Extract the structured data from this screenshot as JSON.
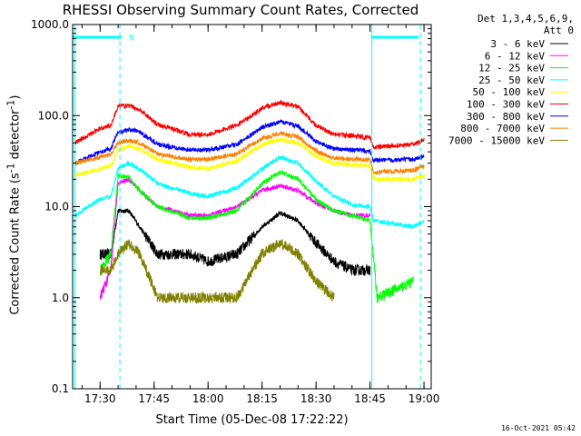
{
  "chart_data": {
    "type": "line",
    "title": "RHESSI Observing Summary Count Rates, Corrected",
    "xlabel": "Start Time (05-Dec-08 17:22:22)",
    "ylabel": "Corrected Count Rate (s⁻¹ detector⁻¹)",
    "ylabel_parts": {
      "pre": "Corrected Count Rate (s",
      "sup1": "-1",
      "mid": " detector",
      "sup2": "-1",
      "post": ")"
    },
    "yscale": "log",
    "ylim": [
      0.1,
      1000
    ],
    "xlim": [
      "17:22:22",
      "19:02:00"
    ],
    "x_ticks": [
      "17:30",
      "17:45",
      "18:00",
      "18:15",
      "18:30",
      "18:45",
      "19:00"
    ],
    "y_ticks": [
      "0.1",
      "1.0",
      "10.0",
      "100.0",
      "1000.0"
    ],
    "legend_header": [
      "Det 1,3,4,5,6,9,",
      "Att 0"
    ],
    "legend_placement": "right",
    "timestamp": "16-Oct-2021 05:42",
    "flag_label": "N",
    "series": [
      {
        "name": "3 - 6 keV",
        "color": "#000000",
        "points": [
          [
            "17:30",
            3
          ],
          [
            "17:33",
            3
          ],
          [
            "17:35",
            9
          ],
          [
            "17:38",
            9
          ],
          [
            "17:41",
            6
          ],
          [
            "17:46",
            3
          ],
          [
            "17:55",
            3
          ],
          [
            "18:00",
            2.5
          ],
          [
            "18:08",
            3
          ],
          [
            "18:15",
            6
          ],
          [
            "18:20",
            8.5
          ],
          [
            "18:25",
            7
          ],
          [
            "18:30",
            4
          ],
          [
            "18:35",
            2.5
          ],
          [
            "18:40",
            2
          ],
          [
            "18:45",
            2
          ]
        ]
      },
      {
        "name": "6 - 12 keV",
        "color": "#ff00ff",
        "points": [
          [
            "17:30",
            1
          ],
          [
            "17:33",
            2
          ],
          [
            "17:35",
            18
          ],
          [
            "17:38",
            20
          ],
          [
            "17:41",
            15
          ],
          [
            "17:46",
            10
          ],
          [
            "17:55",
            8
          ],
          [
            "18:00",
            8
          ],
          [
            "18:08",
            10
          ],
          [
            "18:15",
            15
          ],
          [
            "18:20",
            17
          ],
          [
            "18:25",
            15
          ],
          [
            "18:30",
            11
          ],
          [
            "18:35",
            9
          ],
          [
            "18:40",
            8
          ],
          [
            "18:45",
            8
          ]
        ]
      },
      {
        "name": "12 - 25 keV",
        "color": "#00ff00",
        "points": [
          [
            "17:30",
            2
          ],
          [
            "17:33",
            3
          ],
          [
            "17:35",
            22
          ],
          [
            "17:38",
            21
          ],
          [
            "17:41",
            15
          ],
          [
            "17:46",
            10
          ],
          [
            "17:55",
            7.5
          ],
          [
            "18:00",
            7.5
          ],
          [
            "18:08",
            9
          ],
          [
            "18:15",
            18
          ],
          [
            "18:20",
            24
          ],
          [
            "18:25",
            20
          ],
          [
            "18:30",
            12
          ],
          [
            "18:35",
            9
          ],
          [
            "18:40",
            8
          ],
          [
            "18:45",
            7
          ],
          [
            "18:47",
            1
          ],
          [
            "18:57",
            1.5
          ]
        ]
      },
      {
        "name": "25 - 50 keV",
        "color": "#00ffff",
        "points": [
          [
            "17:23",
            8
          ],
          [
            "17:30",
            12
          ],
          [
            "17:33",
            13
          ],
          [
            "17:35",
            26
          ],
          [
            "17:38",
            30
          ],
          [
            "17:41",
            26
          ],
          [
            "17:46",
            18
          ],
          [
            "17:55",
            14
          ],
          [
            "18:00",
            13
          ],
          [
            "18:08",
            16
          ],
          [
            "18:15",
            26
          ],
          [
            "18:20",
            35
          ],
          [
            "18:25",
            30
          ],
          [
            "18:30",
            19
          ],
          [
            "18:35",
            13
          ],
          [
            "18:40",
            10.5
          ],
          [
            "18:45",
            10
          ],
          [
            "18:46",
            7
          ],
          [
            "18:57",
            6
          ],
          [
            "19:00",
            7
          ]
        ]
      },
      {
        "name": "50 - 100 keV",
        "color": "#ffff00",
        "points": [
          [
            "17:23",
            22
          ],
          [
            "17:30",
            26
          ],
          [
            "17:33",
            28
          ],
          [
            "17:35",
            42
          ],
          [
            "17:38",
            46
          ],
          [
            "17:41",
            43
          ],
          [
            "17:46",
            33
          ],
          [
            "17:55",
            27
          ],
          [
            "18:00",
            26
          ],
          [
            "18:08",
            32
          ],
          [
            "18:15",
            48
          ],
          [
            "18:20",
            55
          ],
          [
            "18:25",
            50
          ],
          [
            "18:30",
            36
          ],
          [
            "18:35",
            30
          ],
          [
            "18:40",
            29
          ],
          [
            "18:45",
            28
          ],
          [
            "18:46",
            20
          ],
          [
            "18:57",
            20
          ],
          [
            "19:00",
            22
          ]
        ]
      },
      {
        "name": "100 - 300 keV",
        "color": "#ff0000",
        "points": [
          [
            "17:23",
            50
          ],
          [
            "17:30",
            72
          ],
          [
            "17:33",
            78
          ],
          [
            "17:35",
            128
          ],
          [
            "17:38",
            128
          ],
          [
            "17:41",
            116
          ],
          [
            "17:46",
            80
          ],
          [
            "17:55",
            62
          ],
          [
            "18:00",
            62
          ],
          [
            "18:08",
            78
          ],
          [
            "18:15",
            120
          ],
          [
            "18:20",
            140
          ],
          [
            "18:25",
            125
          ],
          [
            "18:30",
            78
          ],
          [
            "18:35",
            62
          ],
          [
            "18:40",
            60
          ],
          [
            "18:45",
            57
          ],
          [
            "18:46",
            45
          ],
          [
            "18:57",
            48
          ],
          [
            "19:00",
            54
          ]
        ]
      },
      {
        "name": "300 - 800 keV",
        "color": "#0000ff",
        "points": [
          [
            "17:23",
            30
          ],
          [
            "17:30",
            40
          ],
          [
            "17:33",
            43
          ],
          [
            "17:35",
            66
          ],
          [
            "17:38",
            70
          ],
          [
            "17:41",
            67
          ],
          [
            "17:46",
            48
          ],
          [
            "17:55",
            42
          ],
          [
            "18:00",
            42
          ],
          [
            "18:08",
            48
          ],
          [
            "18:15",
            74
          ],
          [
            "18:20",
            86
          ],
          [
            "18:25",
            77
          ],
          [
            "18:30",
            52
          ],
          [
            "18:35",
            43
          ],
          [
            "18:40",
            42
          ],
          [
            "18:45",
            41
          ],
          [
            "18:46",
            32
          ],
          [
            "18:57",
            33
          ],
          [
            "19:00",
            36
          ]
        ]
      },
      {
        "name": "800 - 7000 keV",
        "color": "#ff8000",
        "points": [
          [
            "17:23",
            30
          ],
          [
            "17:30",
            35
          ],
          [
            "17:33",
            38
          ],
          [
            "17:35",
            50
          ],
          [
            "17:38",
            53
          ],
          [
            "17:41",
            50
          ],
          [
            "17:46",
            38
          ],
          [
            "17:55",
            33
          ],
          [
            "18:00",
            33
          ],
          [
            "18:08",
            38
          ],
          [
            "18:15",
            56
          ],
          [
            "18:20",
            64
          ],
          [
            "18:25",
            58
          ],
          [
            "18:30",
            41
          ],
          [
            "18:35",
            34
          ],
          [
            "18:40",
            33
          ],
          [
            "18:45",
            33
          ],
          [
            "18:46",
            24
          ],
          [
            "18:57",
            25
          ],
          [
            "19:00",
            28
          ]
        ]
      },
      {
        "name": "7000 - 15000 keV",
        "color": "#808000",
        "points": [
          [
            "17:30",
            2
          ],
          [
            "17:33",
            2
          ],
          [
            "17:35",
            3
          ],
          [
            "17:38",
            4
          ],
          [
            "17:41",
            3
          ],
          [
            "17:46",
            1
          ],
          [
            "17:55",
            1
          ],
          [
            "18:05",
            1
          ],
          [
            "18:08",
            1
          ],
          [
            "18:15",
            3
          ],
          [
            "18:20",
            4
          ],
          [
            "18:25",
            3
          ],
          [
            "18:30",
            1.5
          ],
          [
            "18:35",
            1
          ]
        ]
      }
    ],
    "flag_bars": [
      {
        "name": "eclipse",
        "color": "#00ffff",
        "style": "solid",
        "t": [
          "17:23:00",
          "18:45:00"
        ]
      },
      {
        "name": "saa",
        "color": "#00ffff",
        "style": "dashed",
        "t": [
          "17:36:30",
          "18:58:00"
        ]
      }
    ],
    "flag_spans": [
      [
        "17:23:00",
        "17:35:30"
      ],
      [
        "18:45:30",
        "18:59:00"
      ]
    ]
  }
}
